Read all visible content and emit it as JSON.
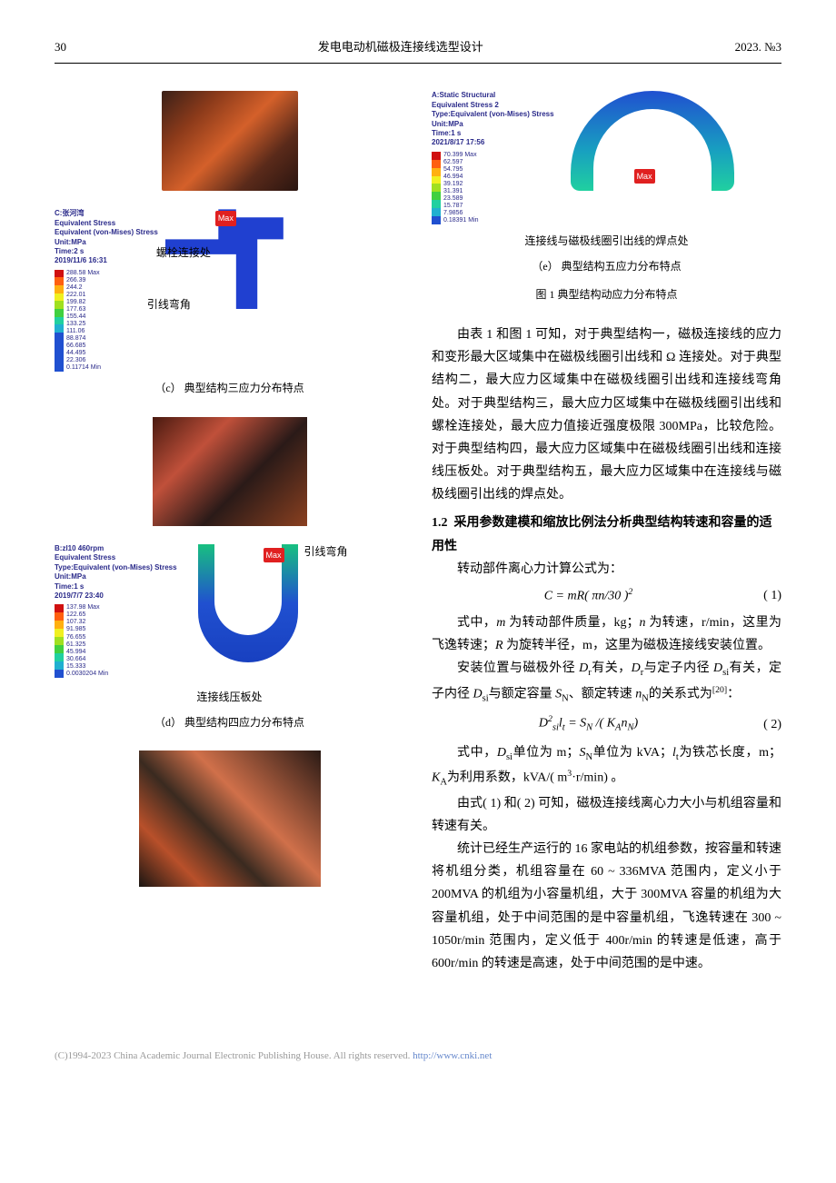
{
  "header": {
    "page_num": "30",
    "title": "发电电动机磁极连接线选型设计",
    "issue": "2023. №3"
  },
  "legend_colors": [
    "#d01010",
    "#ff6010",
    "#ffb010",
    "#f0f020",
    "#a0e020",
    "#40d040",
    "#20d0a0",
    "#20b0d0",
    "#2050d0"
  ],
  "fig_c": {
    "meta": [
      "C:张河湾",
      "Equivalent Stress",
      "Equivalent (von-Mises) Stress",
      "Unit:MPa",
      "Time:2 s",
      "2019/11/6 16:31"
    ],
    "legend_values": [
      "288.58 Max",
      "266.39",
      "244.2",
      "222.01",
      "199.82",
      "177.63",
      "155.44",
      "133.25",
      "111.06",
      "88.874",
      "66.685",
      "44.495",
      "22.306",
      "0.11714 Min"
    ],
    "max_label": "Max",
    "annot1": "螺栓连接处",
    "annot2": "引线弯角",
    "caption": "（c）  典型结构三应力分布特点"
  },
  "fig_d": {
    "meta": [
      "B:zl10 460rpm",
      "Equivalent Stress",
      "Type:Equivalent (von-Mises) Stress",
      "Unit:MPa",
      "Time:1 s",
      "2019/7/7 23:40"
    ],
    "legend_values": [
      "137.98 Max",
      "122.65",
      "107.32",
      "91.985",
      "76.655",
      "61.325",
      "45.994",
      "30.664",
      "15.333",
      "0.0030204 Min"
    ],
    "max_label": "Max",
    "annot1": "引线弯角",
    "annot2": "连接线压板处",
    "caption": "（d）  典型结构四应力分布特点"
  },
  "fig_e": {
    "meta": [
      "A:Static Structural",
      "Equivalent Stress 2",
      "Type:Equivalent (von-Mises) Stress",
      "Unit:MPa",
      "Time:1 s",
      "2021/8/17 17:56"
    ],
    "legend_values": [
      "70.399 Max",
      "62.597",
      "54.795",
      "46.994",
      "39.192",
      "31.391",
      "23.589",
      "15.787",
      "7.9856",
      "0.18391 Min"
    ],
    "max_label": "Max",
    "annot1": "连接线与磁极线圈引出线的焊点处",
    "caption": "（e）  典型结构五应力分布特点",
    "fig_title": "图 1    典型结构动应力分布特点"
  },
  "right": {
    "p1": "由表 1 和图 1 可知，对于典型结构一，磁极连接线的应力和变形最大区域集中在磁极线圈引出线和 Ω 连接处。对于典型结构二，最大应力区域集中在磁极线圈引出线和连接线弯角处。对于典型结构三，最大应力区域集中在磁极线圈引出线和螺栓连接处，最大应力值接近强度极限 300MPa，比较危险。对于典型结构四，最大应力区域集中在磁极线圈引出线和连接线压板处。对于典型结构五，最大应力区域集中在连接线与磁极线圈引出线的焊点处。",
    "sec12_num": "1.2",
    "sec12_title": "采用参数建模和缩放比例法分析典型结构转速和容量的适用性",
    "p2": "转动部件离心力计算公式为：",
    "eq1": "C = mR( πn/30 )",
    "eq1_sup": "2",
    "eq1_num": "( 1)",
    "p3_a": "式中，",
    "p3_b": " 为转动部件质量，kg；",
    "p3_c": " 为转速，r/min，这里为飞逸转速；",
    "p3_d": " 为旋转半径，m，这里为磁极连接线安装位置。",
    "p4_a": "安装位置与磁极外径 ",
    "p4_b": "有关，",
    "p4_c": "与定子内径 ",
    "p4_d": "有关，定子内径 ",
    "p4_e": "与额定容量 ",
    "p4_f": "、额定转速 ",
    "p4_g": "的关系式为",
    "p4_ref": "[20]",
    "p4_h": "：",
    "eq2_a": "D",
    "eq2_b": "l",
    "eq2_c": " = S",
    "eq2_d": " /( K",
    "eq2_e": "n",
    "eq2_f": ")",
    "eq2_num": "( 2)",
    "p5_a": "式中，",
    "p5_b": "单位为 m；",
    "p5_c": "单位为 kVA；",
    "p5_d": "为铁芯长度，m；",
    "p5_e": "为利用系数，kVA/( m",
    "p5_f": "·r/min) 。",
    "p6": "由式( 1) 和( 2) 可知，磁极连接线离心力大小与机组容量和转速有关。",
    "p7": "统计已经生产运行的 16 家电站的机组参数，按容量和转速将机组分类，机组容量在 60 ~ 336MVA 范围内，定义小于 200MVA 的机组为小容量机组，大于 300MVA 容量的机组为大容量机组，处于中间范围的是中容量机组，飞逸转速在 300 ~ 1050r/min 范围内，定义低于 400r/min 的转速是低速，高于 600r/min 的转速是高速，处于中间范围的是中速。"
  },
  "footer": {
    "text": "(C)1994-2023 China Academic Journal Electronic Publishing House. All rights reserved.    ",
    "url": "http://www.cnki.net"
  },
  "sym": {
    "m": "m",
    "n": "n",
    "R": "R",
    "Dr": "D",
    "Dr_sub": "r",
    "Dsi": "D",
    "Dsi_sub": "si",
    "SN": "S",
    "SN_sub": "N",
    "nN": "n",
    "nN_sub": "N",
    "lt": "l",
    "lt_sub": "t",
    "KA": "K",
    "KA_sub": "A"
  }
}
